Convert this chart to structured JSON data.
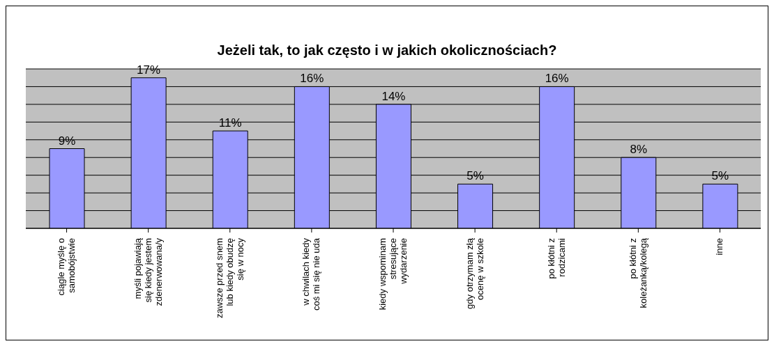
{
  "chart_data": {
    "type": "bar",
    "title": "Jeżeli tak, to jak często i w jakich okolicznościach?",
    "categories": [
      "ciągle myślę o samobójstwie",
      "myśli pojawiają się kiedy jestem zdenerwowana/y",
      "zawsze przed snem lub kiedy obudzę się w nocy",
      "w chwilach kiedy coś mi się nie uda",
      "kiedy wspominam stresujące wydarzenie",
      "gdy otrzymam złą ocenę w szkole",
      "po kłótni z rodzicami",
      "po kłótni z koleżanką/kolegą",
      "inne"
    ],
    "values": [
      9,
      17,
      11,
      16,
      14,
      5,
      16,
      8,
      5
    ],
    "value_labels": [
      "9%",
      "17%",
      "11%",
      "16%",
      "14%",
      "5%",
      "16%",
      "8%",
      "5%"
    ],
    "color": "#9999ff",
    "ylim": [
      0,
      18
    ],
    "yticks": [
      {
        "value": 0,
        "label": null
      },
      {
        "value": 2,
        "label": null
      },
      {
        "value": 4,
        "label": null
      },
      {
        "value": 6,
        "label": null
      },
      {
        "value": 8,
        "label": null
      },
      {
        "value": 10,
        "label": null
      },
      {
        "value": 12,
        "label": null
      },
      {
        "value": 14,
        "label": null
      },
      {
        "value": 16,
        "label": null
      },
      {
        "value": 18,
        "label": null
      }
    ],
    "tick_labels": "x",
    "grid": "y"
  }
}
